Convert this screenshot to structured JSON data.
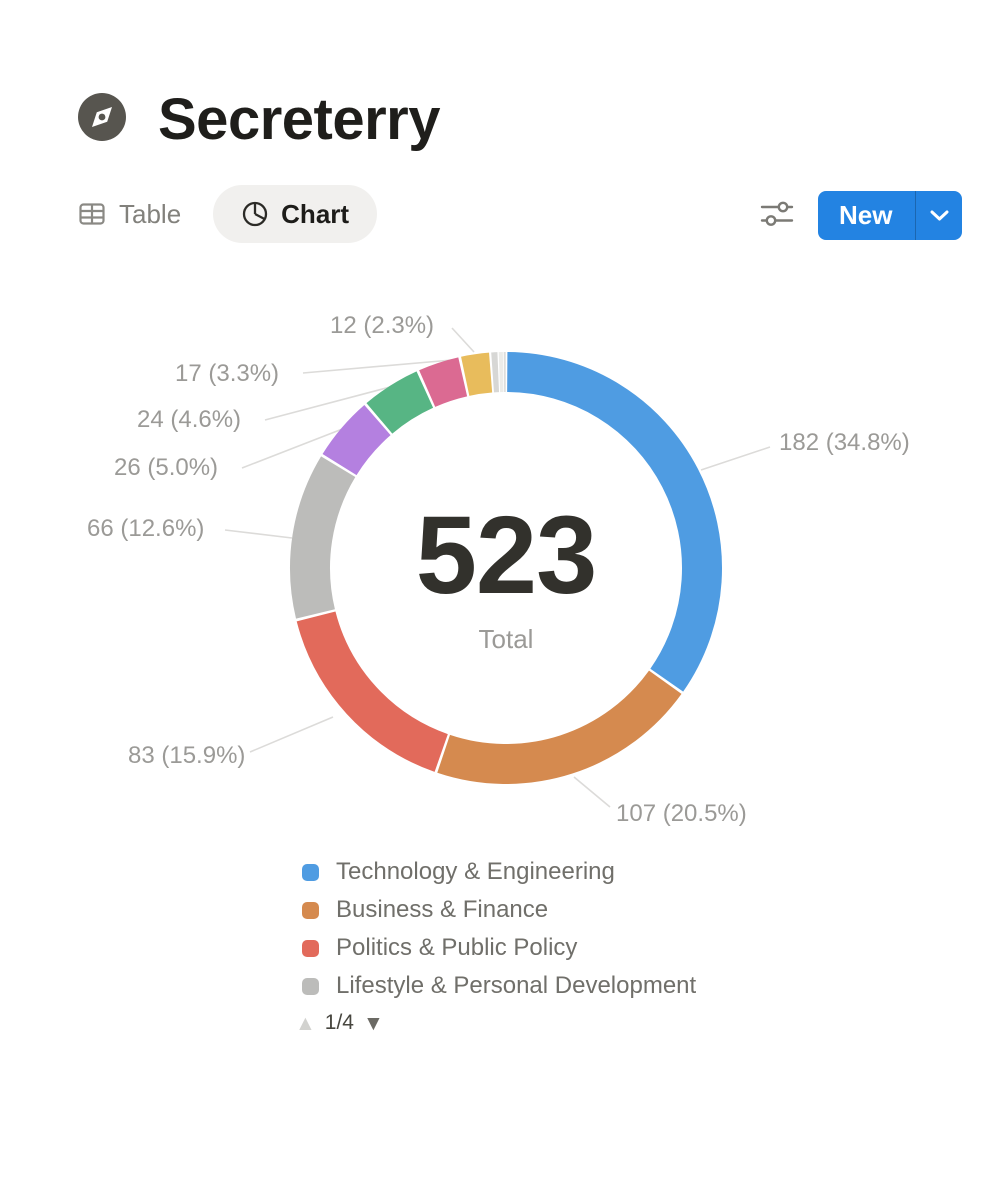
{
  "page": {
    "icon": "compass",
    "title": "Secreterry"
  },
  "toolbar": {
    "tabs": [
      {
        "label": "Table",
        "active": false
      },
      {
        "label": "Chart",
        "active": true
      }
    ],
    "new_button_label": "New"
  },
  "icons": {
    "legend_up": "▲",
    "legend_down": "▼"
  },
  "colors": {
    "accent_blue": "#2383e2",
    "tab_pill_bg": "#f1f0ee",
    "label_gray": "#9b9a97",
    "leader_line": "#dcdbd9"
  },
  "chart_data": {
    "type": "pie",
    "variant": "donut",
    "title": "",
    "total": 523,
    "center_value": "523",
    "center_label": "Total",
    "legend_position": "bottom",
    "legend_page": "1/4",
    "segments": [
      {
        "name": "Technology & Engineering",
        "value": 182,
        "percent": "34.8%",
        "display_label": "182 (34.8%)",
        "color": "#4f9ce2"
      },
      {
        "name": "Business & Finance",
        "value": 107,
        "percent": "20.5%",
        "display_label": "107 (20.5%)",
        "color": "#d58a4f"
      },
      {
        "name": "Politics & Public Policy",
        "value": 83,
        "percent": "15.9%",
        "display_label": "83 (15.9%)",
        "color": "#e26a5b"
      },
      {
        "name": "Lifestyle & Personal Development",
        "value": 66,
        "percent": "12.6%",
        "display_label": "66 (12.6%)",
        "color": "#bcbcba"
      },
      {
        "value": 26,
        "percent": "5.0%",
        "display_label": "26 (5.0%)",
        "color": "#b480e0"
      },
      {
        "value": 24,
        "percent": "4.6%",
        "display_label": "24 (4.6%)",
        "color": "#57b584"
      },
      {
        "value": 17,
        "percent": "3.3%",
        "display_label": "17 (3.3%)",
        "color": "#db6a92"
      },
      {
        "value": 12,
        "percent": "2.3%",
        "display_label": "12 (2.3%)",
        "color": "#e8bc5c"
      },
      {
        "value": 3,
        "color": "#d7d7d5"
      },
      {
        "value": 2,
        "color": "#ecece9"
      },
      {
        "value": 1,
        "color": "#dededc"
      }
    ]
  }
}
